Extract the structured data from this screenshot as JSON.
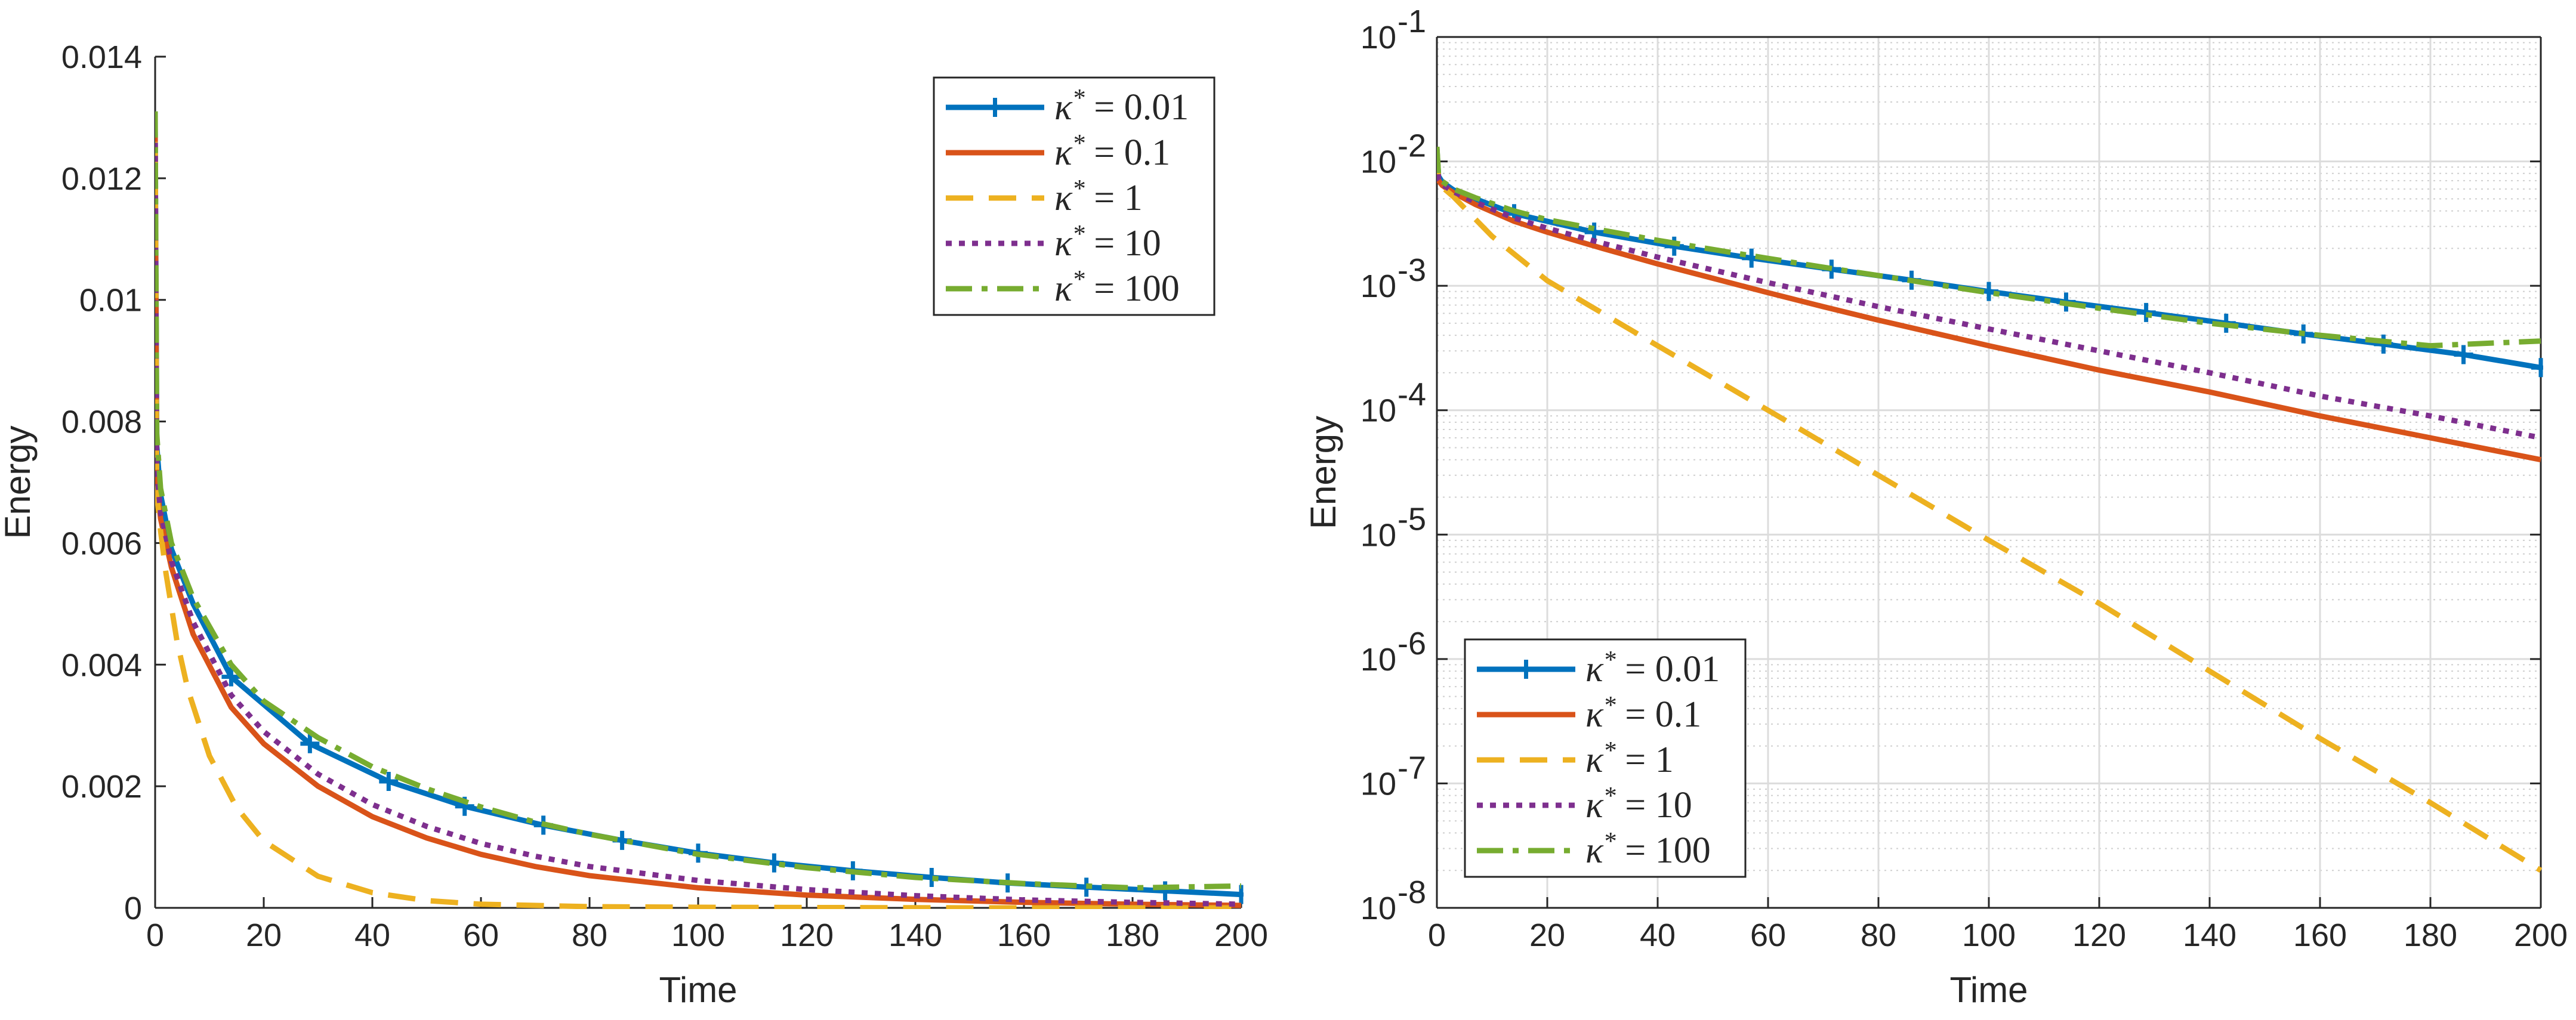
{
  "chart_data": [
    {
      "type": "line",
      "yscale": "linear",
      "title": "",
      "xlabel": "Time",
      "ylabel": "Energy",
      "xlim": [
        0,
        200
      ],
      "ylim": [
        0,
        0.014
      ],
      "grid": false,
      "legend_position": "top-right",
      "xticks": [
        0,
        20,
        40,
        60,
        80,
        100,
        120,
        140,
        160,
        180,
        200
      ],
      "xtick_labels": [
        "0",
        "20",
        "40",
        "60",
        "80",
        "100",
        "120",
        "140",
        "160",
        "180",
        "200"
      ],
      "yticks": [
        0,
        0.002,
        0.004,
        0.006,
        0.008,
        0.01,
        0.012,
        0.014
      ],
      "ytick_labels": [
        "0",
        "0.002",
        "0.004",
        "0.006",
        "0.008",
        "0.01",
        "0.012",
        "0.014"
      ],
      "series": [
        {
          "name": "κ* = 0.01",
          "legend_symbol": "κ",
          "legend_value": "0.01",
          "color": "#0072BD",
          "style": "solid-plus",
          "x": [
            0,
            0.3,
            1,
            3,
            7,
            14,
            28.5,
            43,
            57,
            71.5,
            86,
            100,
            114,
            128.5,
            143,
            157,
            171.5,
            186,
            200
          ],
          "y": [
            0.0128,
            0.0076,
            0.0068,
            0.0059,
            0.005,
            0.0038,
            0.0027,
            0.00208,
            0.00167,
            0.00136,
            0.00111,
            0.0009,
            0.00074,
            0.00061,
            0.0005,
            0.00041,
            0.00034,
            0.00028,
            0.00022
          ]
        },
        {
          "name": "κ* = 0.1",
          "legend_symbol": "κ",
          "legend_value": "0.1",
          "color": "#D95319",
          "style": "solid",
          "x": [
            0,
            0.3,
            1,
            3,
            7,
            14,
            20,
            30,
            40,
            50,
            60,
            70,
            80,
            100,
            120,
            140,
            160,
            180,
            200
          ],
          "y": [
            0.0127,
            0.007,
            0.0064,
            0.0056,
            0.0045,
            0.0033,
            0.0027,
            0.002,
            0.0015,
            0.00115,
            0.00088,
            0.00068,
            0.00053,
            0.00033,
            0.00021,
            0.00014,
            9e-05,
            6e-05,
            4e-05
          ]
        },
        {
          "name": "κ* = 1",
          "legend_symbol": "κ",
          "legend_value": "1",
          "color": "#EDB120",
          "style": "dashed",
          "x": [
            0,
            0.3,
            1,
            2,
            4,
            6,
            10,
            15,
            20,
            30,
            40,
            50,
            60,
            80,
            100,
            150,
            200
          ],
          "y": [
            0.0126,
            0.0068,
            0.0062,
            0.0055,
            0.0044,
            0.0036,
            0.0025,
            0.00165,
            0.0011,
            0.00052,
            0.00025,
            0.00012,
            6e-05,
            2e-05,
            1e-05,
            0,
            0
          ]
        },
        {
          "name": "κ* = 10",
          "legend_symbol": "κ",
          "legend_value": "10",
          "color": "#7E2F8E",
          "style": "dotted",
          "x": [
            0,
            0.3,
            1,
            3,
            7,
            14,
            20,
            30,
            40,
            50,
            60,
            70,
            80,
            100,
            120,
            140,
            160,
            180,
            200
          ],
          "y": [
            0.0128,
            0.0072,
            0.0065,
            0.0057,
            0.0047,
            0.0035,
            0.0029,
            0.0022,
            0.0017,
            0.00134,
            0.00106,
            0.00085,
            0.00068,
            0.00045,
            0.0003,
            0.0002,
            0.00013,
            9e-05,
            6e-05
          ]
        },
        {
          "name": "κ* = 100",
          "legend_symbol": "κ",
          "legend_value": "100",
          "color": "#77AC30",
          "style": "dashdot",
          "x": [
            0,
            0.3,
            1,
            3,
            7,
            14,
            20,
            30,
            40,
            50,
            60,
            70,
            80,
            100,
            120,
            140,
            160,
            180,
            200
          ],
          "y": [
            0.0131,
            0.0078,
            0.0069,
            0.006,
            0.0051,
            0.004,
            0.0034,
            0.0028,
            0.00232,
            0.00196,
            0.00166,
            0.00141,
            0.00121,
            0.00088,
            0.00066,
            0.0005,
            0.0004,
            0.00033,
            0.00036
          ]
        }
      ]
    },
    {
      "type": "line",
      "yscale": "log",
      "title": "",
      "xlabel": "Time",
      "ylabel": "Energy",
      "xlim": [
        0,
        200
      ],
      "ylim": [
        1e-08,
        0.1
      ],
      "grid": true,
      "minor_grid": true,
      "legend_position": "bottom-left",
      "xticks": [
        0,
        20,
        40,
        60,
        80,
        100,
        120,
        140,
        160,
        180,
        200
      ],
      "xtick_labels": [
        "0",
        "20",
        "40",
        "60",
        "80",
        "100",
        "120",
        "140",
        "160",
        "180",
        "200"
      ],
      "yticks": [
        1e-08,
        1e-07,
        1e-06,
        1e-05,
        0.0001,
        0.001,
        0.01,
        0.1
      ],
      "ytick_base": "10",
      "ytick_exponents": [
        "-8",
        "-7",
        "-6",
        "-5",
        "-4",
        "-3",
        "-2",
        "-1"
      ],
      "series": [
        {
          "name": "κ* = 0.01",
          "legend_symbol": "κ",
          "legend_value": "0.01",
          "color": "#0072BD",
          "style": "solid-plus",
          "x": [
            0,
            0.3,
            1,
            3,
            7,
            14,
            28.5,
            43,
            57,
            71.5,
            86,
            100,
            114,
            128.5,
            143,
            157,
            171.5,
            186,
            200
          ],
          "y": [
            0.0128,
            0.0076,
            0.0068,
            0.0059,
            0.005,
            0.0038,
            0.0027,
            0.00208,
            0.00167,
            0.00136,
            0.00111,
            0.0009,
            0.00074,
            0.00061,
            0.0005,
            0.00041,
            0.00034,
            0.00028,
            0.00022
          ]
        },
        {
          "name": "κ* = 0.1",
          "legend_symbol": "κ",
          "legend_value": "0.1",
          "color": "#D95319",
          "style": "solid",
          "x": [
            0,
            0.3,
            1,
            3,
            7,
            14,
            20,
            30,
            40,
            50,
            60,
            70,
            80,
            100,
            120,
            140,
            160,
            180,
            200
          ],
          "y": [
            0.0127,
            0.007,
            0.0064,
            0.0056,
            0.0045,
            0.0033,
            0.0027,
            0.002,
            0.0015,
            0.00115,
            0.00088,
            0.00068,
            0.00053,
            0.00033,
            0.00021,
            0.00014,
            9e-05,
            6e-05,
            4e-05
          ]
        },
        {
          "name": "κ* = 1",
          "legend_symbol": "κ",
          "legend_value": "1",
          "color": "#EDB120",
          "style": "dashed",
          "x": [
            0,
            0.3,
            1,
            3,
            10,
            20,
            40,
            60,
            80,
            100,
            120,
            140,
            160,
            180,
            200
          ],
          "y": [
            0.0126,
            0.0068,
            0.0062,
            0.0052,
            0.0025,
            0.0011,
            0.00033,
            0.0001,
            3e-05,
            9e-06,
            2.8e-06,
            8e-07,
            2.3e-07,
            7e-08,
            2e-08
          ]
        },
        {
          "name": "κ* = 10",
          "legend_symbol": "κ",
          "legend_value": "10",
          "color": "#7E2F8E",
          "style": "dotted",
          "x": [
            0,
            0.3,
            1,
            3,
            7,
            14,
            20,
            30,
            40,
            50,
            60,
            70,
            80,
            100,
            120,
            140,
            160,
            180,
            200
          ],
          "y": [
            0.0128,
            0.0072,
            0.0065,
            0.0057,
            0.0047,
            0.0035,
            0.0029,
            0.0022,
            0.0017,
            0.00134,
            0.00106,
            0.00085,
            0.00068,
            0.00045,
            0.0003,
            0.0002,
            0.00013,
            9e-05,
            6e-05
          ]
        },
        {
          "name": "κ* = 100",
          "legend_symbol": "κ",
          "legend_value": "100",
          "color": "#77AC30",
          "style": "dashdot",
          "x": [
            0,
            0.3,
            1,
            3,
            7,
            14,
            20,
            30,
            40,
            50,
            60,
            70,
            80,
            100,
            120,
            140,
            160,
            180,
            200
          ],
          "y": [
            0.0131,
            0.0078,
            0.0069,
            0.006,
            0.0051,
            0.004,
            0.0034,
            0.0028,
            0.00232,
            0.00196,
            0.00166,
            0.00141,
            0.00121,
            0.00088,
            0.00066,
            0.0005,
            0.0004,
            0.00033,
            0.00036
          ]
        }
      ]
    }
  ]
}
